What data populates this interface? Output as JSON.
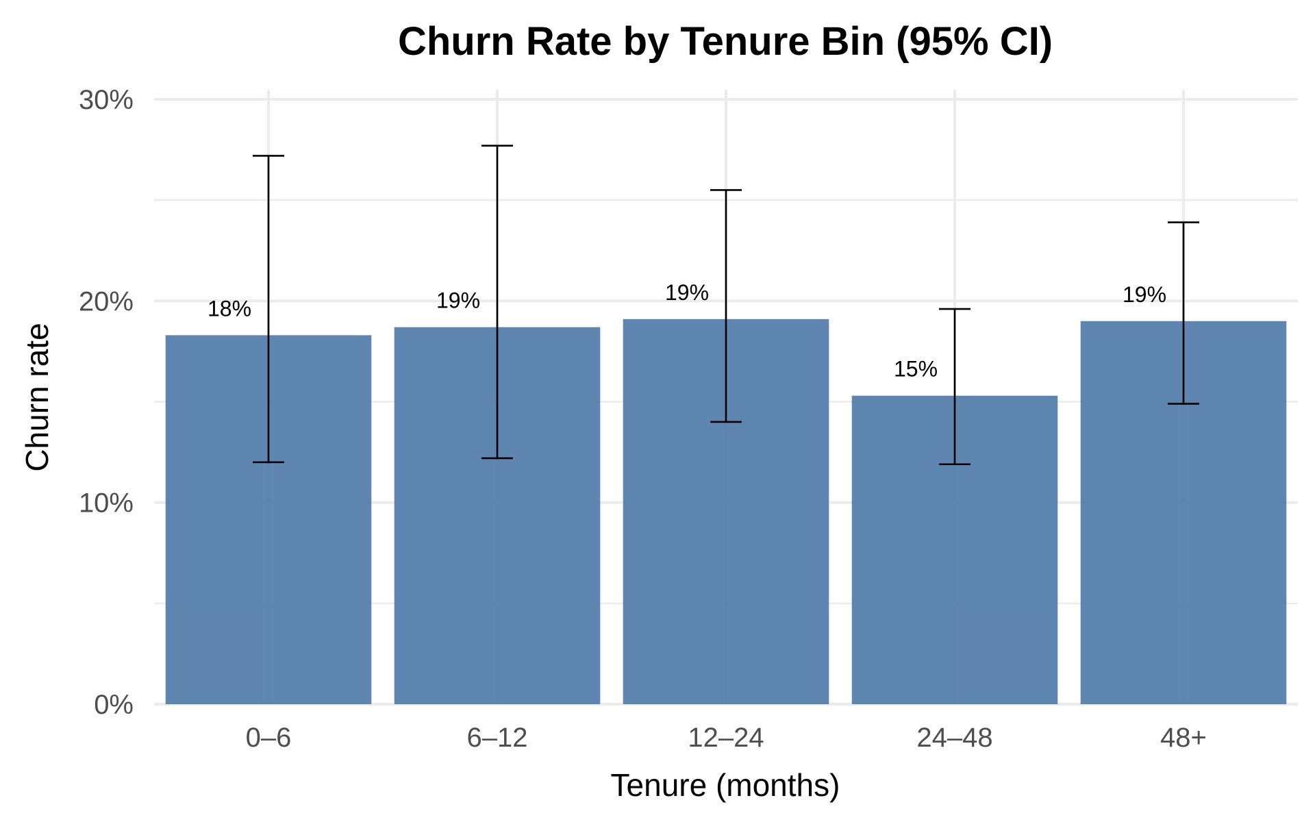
{
  "chart_data": {
    "type": "bar",
    "title": "Churn Rate by Tenure Bin (95% CI)",
    "xlabel": "Tenure (months)",
    "ylabel": "Churn rate",
    "categories": [
      "0–6",
      "6–12",
      "12–24",
      "24–48",
      "48+"
    ],
    "values": [
      18.3,
      18.7,
      19.1,
      15.3,
      19.0
    ],
    "ci_lower": [
      12.0,
      12.2,
      14.0,
      11.9,
      14.9
    ],
    "ci_upper": [
      27.2,
      27.7,
      25.5,
      19.6,
      23.9
    ],
    "data_labels": [
      "18%",
      "19%",
      "19%",
      "15%",
      "19%"
    ],
    "ylim": [
      0,
      30
    ],
    "yticks": [
      0,
      10,
      20,
      30
    ],
    "ytick_labels": [
      "0%",
      "10%",
      "20%",
      "30%"
    ],
    "grid": true,
    "legend": "none",
    "bar_color": "#4e79a7"
  }
}
